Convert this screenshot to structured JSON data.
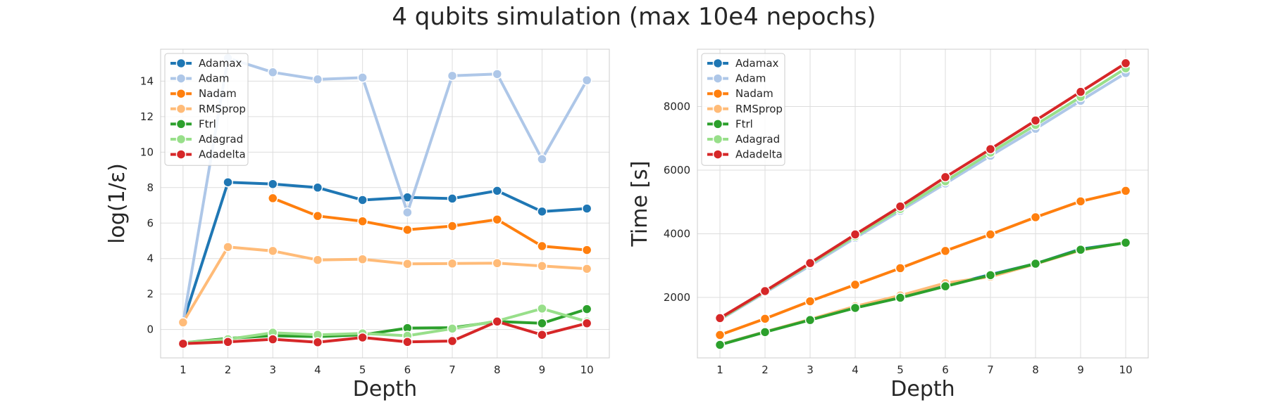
{
  "figure": {
    "title": "4 qubits simulation (max 10e4 nepochs)"
  },
  "chart_data": [
    {
      "type": "line",
      "xlabel": "Depth",
      "ylabel": "log(1/ε)",
      "x": [
        1,
        2,
        3,
        4,
        5,
        6,
        7,
        8,
        9,
        10
      ],
      "xlim": [
        0.5,
        10.5
      ],
      "ylim": [
        -1.6,
        15.8
      ],
      "yticks": [
        0,
        2,
        4,
        6,
        8,
        10,
        12,
        14
      ],
      "grid": true,
      "legend_position": "top-left",
      "series": [
        {
          "name": "Adamax",
          "color": "#1f77b4",
          "values": [
            0.4,
            8.3,
            8.2,
            8.0,
            7.3,
            7.45,
            7.38,
            7.82,
            6.65,
            6.82
          ]
        },
        {
          "name": "Adam",
          "color": "#aec7e8",
          "values": [
            0.4,
            15.3,
            14.5,
            14.1,
            14.2,
            6.6,
            14.3,
            14.4,
            9.6,
            14.05
          ]
        },
        {
          "name": "Nadam",
          "color": "#ff7f0e",
          "values": [
            null,
            null,
            7.4,
            6.4,
            6.1,
            5.62,
            5.83,
            6.2,
            4.7,
            4.48
          ]
        },
        {
          "name": "RMSprop",
          "color": "#ffbb78",
          "values": [
            0.4,
            4.65,
            4.43,
            3.92,
            3.96,
            3.7,
            3.72,
            3.74,
            3.58,
            3.42
          ]
        },
        {
          "name": "Ftrl",
          "color": "#2ca02c",
          "values": [
            -0.75,
            -0.5,
            -0.35,
            -0.4,
            -0.3,
            0.08,
            0.1,
            0.45,
            0.35,
            1.15
          ]
        },
        {
          "name": "Adagrad",
          "color": "#98df8a",
          "values": [
            -0.75,
            -0.55,
            -0.18,
            -0.3,
            -0.22,
            -0.35,
            0.05,
            0.48,
            1.18,
            0.45
          ]
        },
        {
          "name": "Adadelta",
          "color": "#d62728",
          "values": [
            -0.8,
            -0.7,
            -0.55,
            -0.72,
            -0.45,
            -0.7,
            -0.65,
            0.45,
            -0.3,
            0.35
          ]
        }
      ]
    },
    {
      "type": "line",
      "xlabel": "Depth",
      "ylabel": "Time [s]",
      "x": [
        1,
        2,
        3,
        4,
        5,
        6,
        7,
        8,
        9,
        10
      ],
      "xlim": [
        0.5,
        10.5
      ],
      "ylim": [
        100,
        9800
      ],
      "yticks": [
        2000,
        4000,
        6000,
        8000
      ],
      "grid": true,
      "legend_position": "top-left",
      "series": [
        {
          "name": "Adamax",
          "color": "#1f77b4",
          "values": [
            520,
            920,
            1300,
            1680,
            2000,
            2360,
            2720,
            3060,
            3520,
            3720
          ]
        },
        {
          "name": "Adam",
          "color": "#aec7e8",
          "values": [
            1300,
            2150,
            3000,
            3870,
            4720,
            5580,
            6450,
            7300,
            8180,
            9050
          ]
        },
        {
          "name": "Nadam",
          "color": "#ff7f0e",
          "values": [
            820,
            1330,
            1880,
            2400,
            2920,
            3460,
            3980,
            4520,
            5020,
            5350
          ]
        },
        {
          "name": "RMSprop",
          "color": "#ffbb78",
          "values": [
            520,
            920,
            1310,
            1720,
            2060,
            2450,
            2650,
            3050,
            3480,
            3730
          ]
        },
        {
          "name": "Ftrl",
          "color": "#2ca02c",
          "values": [
            510,
            910,
            1290,
            1670,
            1990,
            2350,
            2700,
            3060,
            3500,
            3720
          ]
        },
        {
          "name": "Adagrad",
          "color": "#98df8a",
          "values": [
            1320,
            2180,
            3050,
            3920,
            4780,
            5650,
            6550,
            7420,
            8300,
            9200
          ]
        },
        {
          "name": "Adadelta",
          "color": "#d62728",
          "values": [
            1350,
            2200,
            3080,
            3980,
            4860,
            5780,
            6660,
            7560,
            8460,
            9360
          ]
        }
      ]
    }
  ]
}
